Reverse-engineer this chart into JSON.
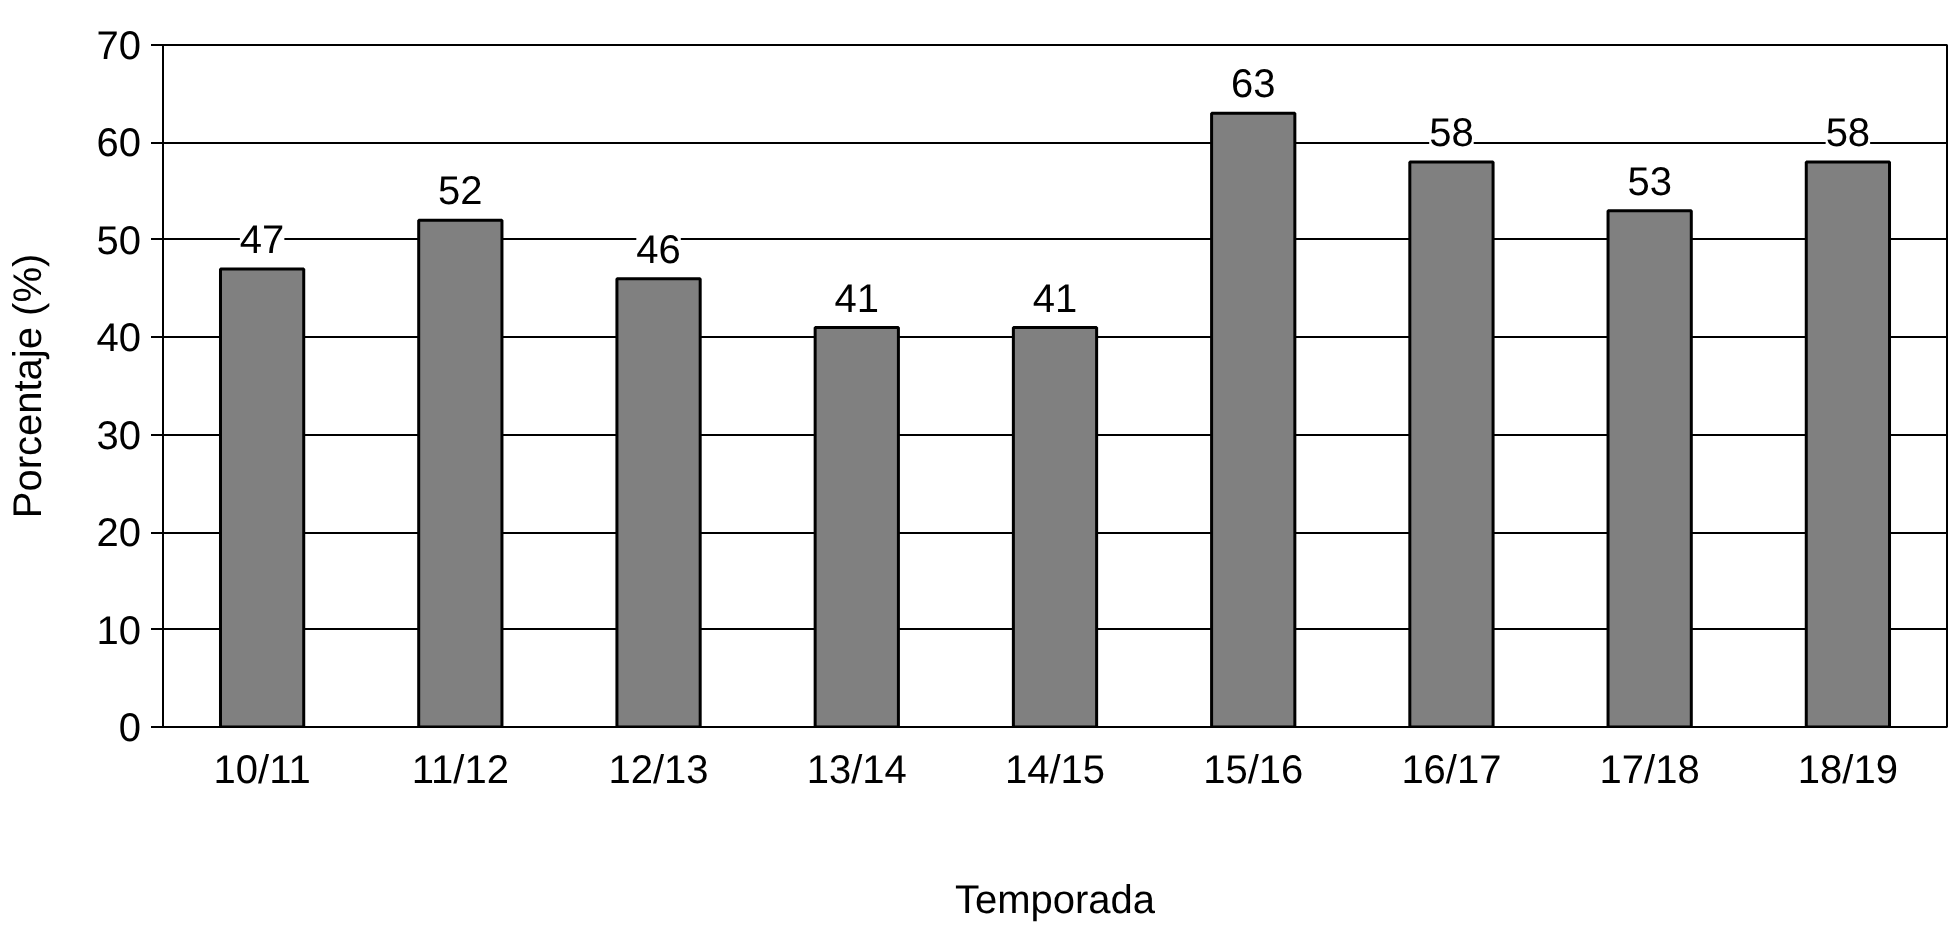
{
  "chart_data": {
    "type": "bar",
    "xlabel": "Temporada",
    "ylabel": "Porcentaje (%)",
    "categories": [
      "10/11",
      "11/12",
      "12/13",
      "13/14",
      "14/15",
      "15/16",
      "16/17",
      "17/18",
      "18/19"
    ],
    "values": [
      47,
      52,
      46,
      41,
      41,
      63,
      58,
      53,
      58
    ],
    "color": "#808080",
    "ylim": [
      0,
      70
    ],
    "yticks": [
      0,
      10,
      20,
      30,
      40,
      50,
      60,
      70
    ],
    "grid": "y",
    "data_labels": true
  }
}
